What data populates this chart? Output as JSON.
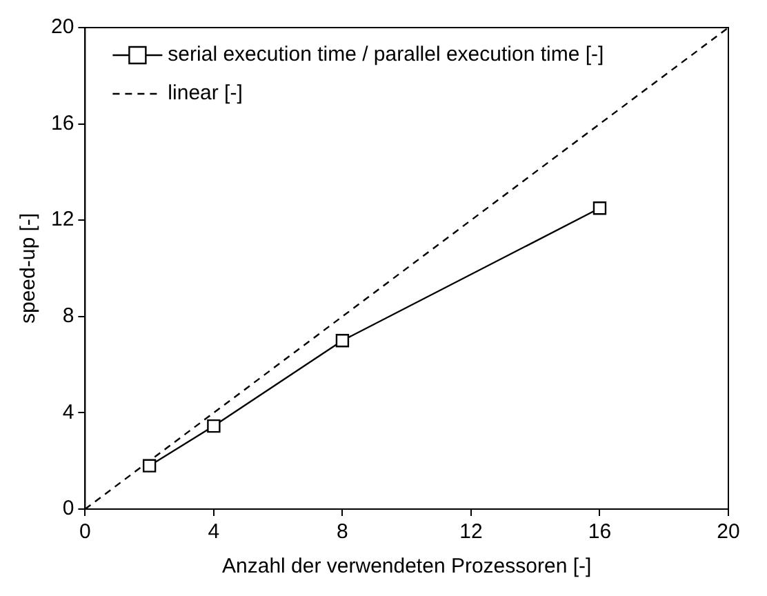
{
  "chart_data": {
    "type": "line",
    "xlabel": "Anzahl der verwendeten Prozessoren [-]",
    "ylabel": "speed-up [-]",
    "xlim": [
      0,
      20
    ],
    "xticks": [
      0,
      4,
      8,
      12,
      16,
      20
    ],
    "ylim": [
      0,
      20
    ],
    "yticks": [
      0,
      4,
      8,
      12,
      16,
      20
    ],
    "grid": false,
    "legend": "top left",
    "series": [
      {
        "name": "serial execution time / parallel execution time [-]",
        "color": "#000000",
        "x": [
          2,
          4,
          8,
          16
        ],
        "values": [
          1.8,
          3.45,
          7.0,
          12.5
        ],
        "marker": "square",
        "line_style": "solid"
      },
      {
        "name": "linear [-]",
        "color": "#000000",
        "x": [
          0,
          20
        ],
        "values": [
          0,
          20
        ],
        "marker": "none",
        "line_style": "dashed"
      }
    ]
  }
}
